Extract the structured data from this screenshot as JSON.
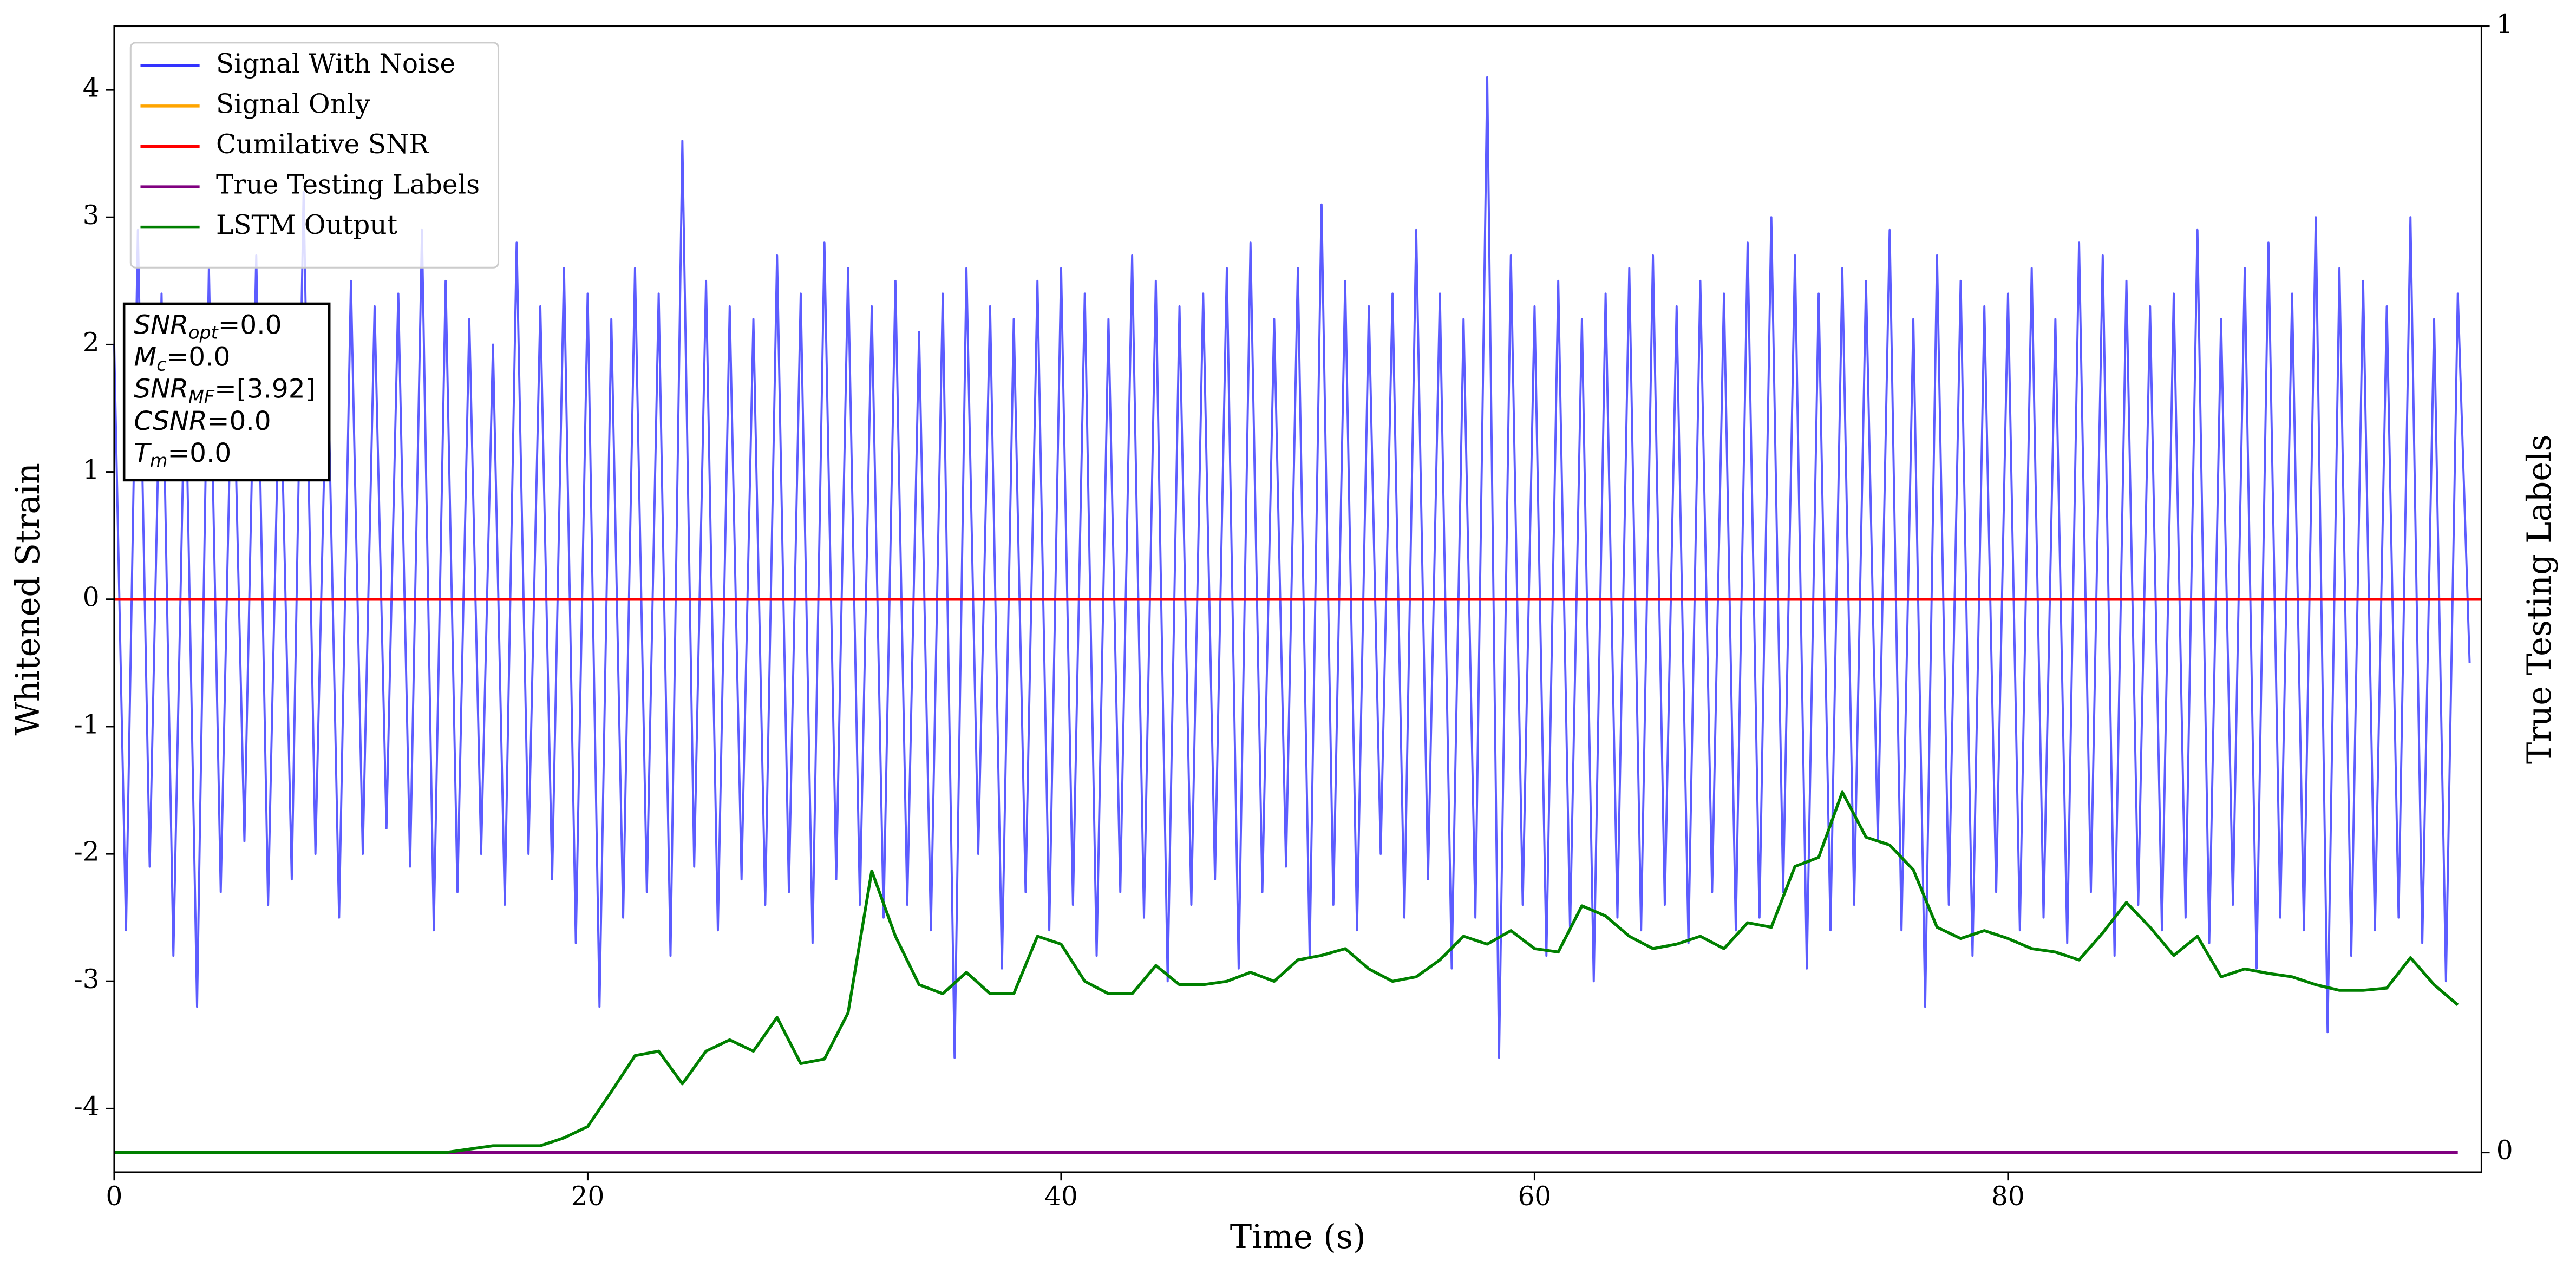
{
  "chart_data": {
    "type": "line",
    "xlabel": "Time (s)",
    "ylabel": "Whitened Strain",
    "y2label": "True Testing Labels",
    "xlim": [
      0,
      100
    ],
    "xticks": [
      0,
      20,
      40,
      60,
      80
    ],
    "ylim": [
      -4.5,
      4.5
    ],
    "yticks": [
      -4,
      -3,
      -2,
      -1,
      0,
      1,
      2,
      3,
      4
    ],
    "y2lim": [
      -0.0175,
      1
    ],
    "y2ticks": [
      0,
      1
    ],
    "legend": "upper left",
    "annotations": [
      {
        "symbol": "SNR",
        "sub": "opt",
        "text": "=0.0"
      },
      {
        "symbol": "M",
        "sub": "c",
        "text": "=0.0"
      },
      {
        "symbol": "SNR",
        "sub": "MF",
        "text": "=[3.92]"
      },
      {
        "symbol": "CSNR",
        "sub": "",
        "text": "=0.0"
      },
      {
        "symbol": "T",
        "sub": "m",
        "text": "=0.0"
      }
    ],
    "series": [
      {
        "name": "Signal With Noise",
        "color": "#3333ff",
        "step": 0.5,
        "values": [
          2.0,
          -2.6,
          2.9,
          -2.1,
          2.4,
          -2.8,
          1.9,
          -3.2,
          2.6,
          -2.3,
          2.2,
          -1.9,
          2.7,
          -2.4,
          2.0,
          -2.2,
          3.2,
          -2.0,
          2.1,
          -2.5,
          2.5,
          -2.0,
          2.3,
          -1.8,
          2.4,
          -2.1,
          2.9,
          -2.6,
          2.5,
          -2.3,
          2.2,
          -2.0,
          2.0,
          -2.4,
          2.8,
          -2.0,
          2.3,
          -2.2,
          2.6,
          -2.7,
          2.4,
          -3.2,
          2.2,
          -2.5,
          2.6,
          -2.3,
          2.4,
          -2.8,
          3.6,
          -2.1,
          2.5,
          -2.6,
          2.3,
          -2.2,
          2.2,
          -2.4,
          2.7,
          -2.3,
          2.4,
          -2.7,
          2.8,
          -2.2,
          2.6,
          -2.4,
          2.3,
          -2.5,
          2.5,
          -2.4,
          2.1,
          -2.6,
          2.4,
          -3.6,
          2.6,
          -2.0,
          2.3,
          -2.9,
          2.2,
          -2.3,
          2.5,
          -2.6,
          2.6,
          -2.4,
          2.4,
          -2.8,
          2.2,
          -2.3,
          2.7,
          -2.5,
          2.5,
          -3.0,
          2.3,
          -2.4,
          2.4,
          -2.2,
          2.6,
          -2.9,
          2.8,
          -2.3,
          2.2,
          -2.1,
          2.6,
          -2.8,
          3.1,
          -2.4,
          2.5,
          -2.6,
          2.3,
          -2.0,
          2.4,
          -2.5,
          2.9,
          -2.2,
          2.4,
          -2.9,
          2.2,
          -2.5,
          4.1,
          -3.6,
          2.7,
          -2.4,
          2.3,
          -2.8,
          2.5,
          -2.6,
          2.2,
          -3.0,
          2.4,
          -2.5,
          2.6,
          -2.6,
          2.7,
          -2.4,
          2.3,
          -2.7,
          2.5,
          -2.3,
          2.4,
          -2.6,
          2.8,
          -2.5,
          3.0,
          -2.3,
          2.7,
          -2.9,
          2.4,
          -2.6,
          2.6,
          -2.4,
          2.5,
          -1.9,
          2.9,
          -2.6,
          2.2,
          -3.2,
          2.7,
          -2.4,
          2.5,
          -2.8,
          2.3,
          -2.3,
          2.4,
          -2.6,
          2.6,
          -2.5,
          2.2,
          -2.7,
          2.8,
          -2.3,
          2.7,
          -2.8,
          2.5,
          -2.4,
          2.3,
          -2.6,
          2.4,
          -2.5,
          2.9,
          -2.7,
          2.2,
          -2.4,
          2.6,
          -2.9,
          2.8,
          -2.5,
          2.4,
          -2.6,
          3.0,
          -3.4,
          2.6,
          -2.8,
          2.5,
          -2.6,
          2.3,
          -2.5,
          3.0,
          -2.7,
          2.2,
          -3.0,
          2.4,
          -0.5
        ]
      },
      {
        "name": "Signal Only",
        "color": "#ffa500",
        "x": [
          0,
          100
        ],
        "values": [
          0,
          0
        ]
      },
      {
        "name": "Cumilative SNR",
        "color": "#ff0000",
        "x": [
          0,
          100
        ],
        "values": [
          0,
          0
        ]
      },
      {
        "name": "True Testing Labels",
        "color": "#800080",
        "axis": "y2",
        "x": [
          0,
          99
        ],
        "values": [
          0,
          0
        ]
      },
      {
        "name": "LSTM Output",
        "color": "#008000",
        "axis": "y2",
        "step": 1,
        "values": [
          0,
          0,
          0,
          0,
          0,
          0,
          0,
          0,
          0,
          0,
          0,
          0,
          0,
          0,
          0,
          0.003,
          0.006,
          0.006,
          0.006,
          0.013,
          0.023,
          0.054,
          0.086,
          0.09,
          0.061,
          0.09,
          0.1,
          0.09,
          0.12,
          0.079,
          0.083,
          0.124,
          0.25,
          0.192,
          0.149,
          0.141,
          0.16,
          0.141,
          0.141,
          0.192,
          0.185,
          0.152,
          0.141,
          0.141,
          0.166,
          0.149,
          0.149,
          0.152,
          0.16,
          0.152,
          0.171,
          0.175,
          0.181,
          0.163,
          0.152,
          0.156,
          0.171,
          0.192,
          0.185,
          0.197,
          0.181,
          0.178,
          0.219,
          0.21,
          0.192,
          0.181,
          0.185,
          0.192,
          0.181,
          0.204,
          0.2,
          0.254,
          0.262,
          0.32,
          0.28,
          0.273,
          0.251,
          0.2,
          0.19,
          0.197,
          0.19,
          0.181,
          0.178,
          0.171,
          0.195,
          0.222,
          0.2,
          0.175,
          0.192,
          0.156,
          0.163,
          0.159,
          0.156,
          0.149,
          0.144,
          0.144,
          0.146,
          0.173,
          0.149,
          0.131
        ]
      }
    ]
  }
}
